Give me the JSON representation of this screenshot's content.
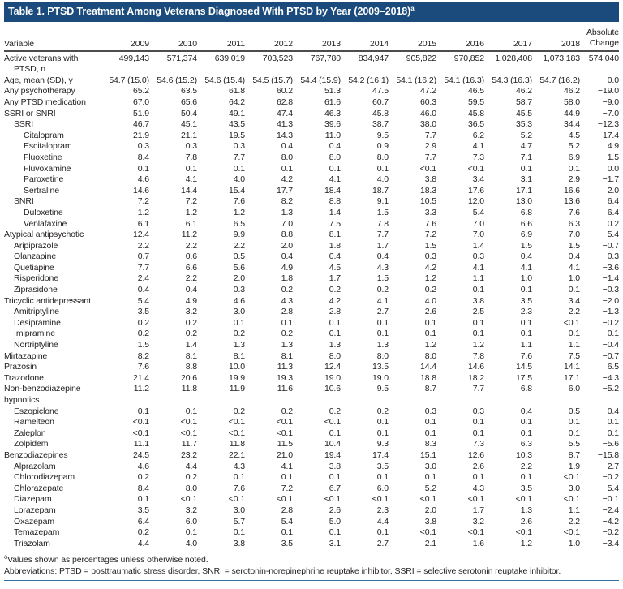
{
  "table": {
    "title": "Table 1. PTSD Treatment Among Veterans Diagnosed With PTSD by Year (2009–2018)",
    "title_marker": "a",
    "columns": [
      "Variable",
      "2009",
      "2010",
      "2011",
      "2012",
      "2013",
      "2014",
      "2015",
      "2016",
      "2017",
      "2018",
      "Absolute Change"
    ],
    "rows": [
      {
        "label": "Active veterans with PTSD, n",
        "indent": 0,
        "hang": true,
        "values": [
          "499,143",
          "571,374",
          "639,019",
          "703,523",
          "767,780",
          "834,947",
          "905,822",
          "970,852",
          "1,028,408",
          "1,073,183",
          "574,040"
        ]
      },
      {
        "label": "Age, mean (SD), y",
        "indent": 0,
        "values": [
          "54.7 (15.0)",
          "54.6 (15.2)",
          "54.6 (15.4)",
          "54.5 (15.7)",
          "54.4 (15.9)",
          "54.2 (16.1)",
          "54.1 (16.2)",
          "54.1 (16.3)",
          "54.3 (16.3)",
          "54.7 (16.2)",
          "0.0"
        ]
      },
      {
        "label": "Any psychotherapy",
        "indent": 0,
        "values": [
          "65.2",
          "63.5",
          "61.8",
          "60.2",
          "51.3",
          "47.5",
          "47.2",
          "46.5",
          "46.2",
          "46.2",
          "−19.0"
        ]
      },
      {
        "label": "Any PTSD medication",
        "indent": 0,
        "values": [
          "67.0",
          "65.6",
          "64.2",
          "62.8",
          "61.6",
          "60.7",
          "60.3",
          "59.5",
          "58.7",
          "58.0",
          "−9.0"
        ]
      },
      {
        "label": "SSRI or SNRI",
        "indent": 0,
        "values": [
          "51.9",
          "50.4",
          "49.1",
          "47.4",
          "46.3",
          "45.8",
          "46.0",
          "45.8",
          "45.5",
          "44.9",
          "−7.0"
        ]
      },
      {
        "label": "SSRI",
        "indent": 1,
        "values": [
          "46.7",
          "45.1",
          "43.5",
          "41.3",
          "39.6",
          "38.7",
          "38.0",
          "36.5",
          "35.3",
          "34.4",
          "−12.3"
        ]
      },
      {
        "label": "Citalopram",
        "indent": 2,
        "values": [
          "21.9",
          "21.1",
          "19.5",
          "14.3",
          "11.0",
          "9.5",
          "7.7",
          "6.2",
          "5.2",
          "4.5",
          "−17.4"
        ]
      },
      {
        "label": "Escitalopram",
        "indent": 2,
        "values": [
          "0.3",
          "0.3",
          "0.3",
          "0.4",
          "0.4",
          "0.9",
          "2.9",
          "4.1",
          "4.7",
          "5.2",
          "4.9"
        ]
      },
      {
        "label": "Fluoxetine",
        "indent": 2,
        "values": [
          "8.4",
          "7.8",
          "7.7",
          "8.0",
          "8.0",
          "8.0",
          "7.7",
          "7.3",
          "7.1",
          "6.9",
          "−1.5"
        ]
      },
      {
        "label": "Fluvoxamine",
        "indent": 2,
        "values": [
          "0.1",
          "0.1",
          "0.1",
          "0.1",
          "0.1",
          "0.1",
          "<0.1",
          "<0.1",
          "0.1",
          "0.1",
          "0.0"
        ]
      },
      {
        "label": "Paroxetine",
        "indent": 2,
        "values": [
          "4.6",
          "4.1",
          "4.0",
          "4.2",
          "4.1",
          "4.0",
          "3.8",
          "3.4",
          "3.1",
          "2.9",
          "−1.7"
        ]
      },
      {
        "label": "Sertraline",
        "indent": 2,
        "values": [
          "14.6",
          "14.4",
          "15.4",
          "17.7",
          "18.4",
          "18.7",
          "18.3",
          "17.6",
          "17.1",
          "16.6",
          "2.0"
        ]
      },
      {
        "label": "SNRI",
        "indent": 1,
        "values": [
          "7.2",
          "7.2",
          "7.6",
          "8.2",
          "8.8",
          "9.1",
          "10.5",
          "12.0",
          "13.0",
          "13.6",
          "6.4"
        ]
      },
      {
        "label": "Duloxetine",
        "indent": 2,
        "values": [
          "1.2",
          "1.2",
          "1.2",
          "1.3",
          "1.4",
          "1.5",
          "3.3",
          "5.4",
          "6.8",
          "7.6",
          "6.4"
        ]
      },
      {
        "label": "Venlafaxine",
        "indent": 2,
        "values": [
          "6.1",
          "6.1",
          "6.5",
          "7.0",
          "7.5",
          "7.8",
          "7.6",
          "7.0",
          "6.6",
          "6.3",
          "0.2"
        ]
      },
      {
        "label": "Atypical antipsychotic",
        "indent": 0,
        "values": [
          "12.4",
          "11.2",
          "9.9",
          "8.8",
          "8.1",
          "7.7",
          "7.2",
          "7.0",
          "6.9",
          "7.0",
          "−5.4"
        ]
      },
      {
        "label": "Aripiprazole",
        "indent": 1,
        "values": [
          "2.2",
          "2.2",
          "2.2",
          "2.0",
          "1.8",
          "1.7",
          "1.5",
          "1.4",
          "1.5",
          "1.5",
          "−0.7"
        ]
      },
      {
        "label": "Olanzapine",
        "indent": 1,
        "values": [
          "0.7",
          "0.6",
          "0.5",
          "0.4",
          "0.4",
          "0.4",
          "0.3",
          "0.3",
          "0.4",
          "0.4",
          "−0.3"
        ]
      },
      {
        "label": "Quetiapine",
        "indent": 1,
        "values": [
          "7.7",
          "6.6",
          "5.6",
          "4.9",
          "4.5",
          "4.3",
          "4.2",
          "4.1",
          "4.1",
          "4.1",
          "−3.6"
        ]
      },
      {
        "label": "Risperidone",
        "indent": 1,
        "values": [
          "2.4",
          "2.2",
          "2.0",
          "1.8",
          "1.7",
          "1.5",
          "1.2",
          "1.1",
          "1.0",
          "1.0",
          "−1.4"
        ]
      },
      {
        "label": "Ziprasidone",
        "indent": 1,
        "values": [
          "0.4",
          "0.4",
          "0.3",
          "0.2",
          "0.2",
          "0.2",
          "0.2",
          "0.1",
          "0.1",
          "0.1",
          "−0.3"
        ]
      },
      {
        "label": "Tricyclic antidepressant",
        "indent": 0,
        "values": [
          "5.4",
          "4.9",
          "4.6",
          "4.3",
          "4.2",
          "4.1",
          "4.0",
          "3.8",
          "3.5",
          "3.4",
          "−2.0"
        ]
      },
      {
        "label": "Amitriptyline",
        "indent": 1,
        "values": [
          "3.5",
          "3.2",
          "3.0",
          "2.8",
          "2.8",
          "2.7",
          "2.6",
          "2.5",
          "2.3",
          "2.2",
          "−1.3"
        ]
      },
      {
        "label": "Desipramine",
        "indent": 1,
        "values": [
          "0.2",
          "0.2",
          "0.1",
          "0.1",
          "0.1",
          "0.1",
          "0.1",
          "0.1",
          "0.1",
          "<0.1",
          "−0.2"
        ]
      },
      {
        "label": "Imipramine",
        "indent": 1,
        "values": [
          "0.2",
          "0.2",
          "0.2",
          "0.2",
          "0.1",
          "0.1",
          "0.1",
          "0.1",
          "0.1",
          "0.1",
          "−0.1"
        ]
      },
      {
        "label": "Nortriptyline",
        "indent": 1,
        "values": [
          "1.5",
          "1.4",
          "1.3",
          "1.3",
          "1.3",
          "1.3",
          "1.2",
          "1.2",
          "1.1",
          "1.1",
          "−0.4"
        ]
      },
      {
        "label": "Mirtazapine",
        "indent": 0,
        "values": [
          "8.2",
          "8.1",
          "8.1",
          "8.1",
          "8.0",
          "8.0",
          "8.0",
          "7.8",
          "7.6",
          "7.5",
          "−0.7"
        ]
      },
      {
        "label": "Prazosin",
        "indent": 0,
        "values": [
          "7.6",
          "8.8",
          "10.0",
          "11.3",
          "12.4",
          "13.5",
          "14.4",
          "14.6",
          "14.5",
          "14.1",
          "6.5"
        ]
      },
      {
        "label": "Trazodone",
        "indent": 0,
        "values": [
          "21.4",
          "20.6",
          "19.9",
          "19.3",
          "19.0",
          "19.0",
          "18.8",
          "18.2",
          "17.5",
          "17.1",
          "−4.3"
        ]
      },
      {
        "label": "Non-benzodiazepine hypnotics",
        "indent": 0,
        "values": [
          "11.2",
          "11.8",
          "11.9",
          "11.6",
          "10.6",
          "9.5",
          "8.7",
          "7.7",
          "6.8",
          "6.0",
          "−5.2"
        ]
      },
      {
        "label": "Eszopiclone",
        "indent": 1,
        "values": [
          "0.1",
          "0.1",
          "0.2",
          "0.2",
          "0.2",
          "0.2",
          "0.3",
          "0.3",
          "0.4",
          "0.5",
          "0.4"
        ]
      },
      {
        "label": "Ramelteon",
        "indent": 1,
        "values": [
          "<0.1",
          "<0.1",
          "<0.1",
          "<0.1",
          "<0.1",
          "0.1",
          "0.1",
          "0.1",
          "0.1",
          "0.1",
          "0.1"
        ]
      },
      {
        "label": "Zaleplon",
        "indent": 1,
        "values": [
          "<0.1",
          "<0.1",
          "<0.1",
          "<0.1",
          "0.1",
          "0.1",
          "0.1",
          "0.1",
          "0.1",
          "0.1",
          "0.1"
        ]
      },
      {
        "label": "Zolpidem",
        "indent": 1,
        "values": [
          "11.1",
          "11.7",
          "11.8",
          "11.5",
          "10.4",
          "9.3",
          "8.3",
          "7.3",
          "6.3",
          "5.5",
          "−5.6"
        ]
      },
      {
        "label": "Benzodiazepines",
        "indent": 0,
        "values": [
          "24.5",
          "23.2",
          "22.1",
          "21.0",
          "19.4",
          "17.4",
          "15.1",
          "12.6",
          "10.3",
          "8.7",
          "−15.8"
        ]
      },
      {
        "label": "Alprazolam",
        "indent": 1,
        "values": [
          "4.6",
          "4.4",
          "4.3",
          "4.1",
          "3.8",
          "3.5",
          "3.0",
          "2.6",
          "2.2",
          "1.9",
          "−2.7"
        ]
      },
      {
        "label": "Chlorodiazepam",
        "indent": 1,
        "values": [
          "0.2",
          "0.2",
          "0.1",
          "0.1",
          "0.1",
          "0.1",
          "0.1",
          "0.1",
          "0.1",
          "<0.1",
          "−0.2"
        ]
      },
      {
        "label": "Chlorazepate",
        "indent": 1,
        "values": [
          "8.4",
          "8.0",
          "7.6",
          "7.2",
          "6.7",
          "6.0",
          "5.2",
          "4.3",
          "3.5",
          "3.0",
          "−5.4"
        ]
      },
      {
        "label": "Diazepam",
        "indent": 1,
        "values": [
          "0.1",
          "<0.1",
          "<0.1",
          "<0.1",
          "<0.1",
          "<0.1",
          "<0.1",
          "<0.1",
          "<0.1",
          "<0.1",
          "−0.1"
        ]
      },
      {
        "label": "Lorazepam",
        "indent": 1,
        "values": [
          "3.5",
          "3.2",
          "3.0",
          "2.8",
          "2.6",
          "2.3",
          "2.0",
          "1.7",
          "1.3",
          "1.1",
          "−2.4"
        ]
      },
      {
        "label": "Oxazepam",
        "indent": 1,
        "values": [
          "6.4",
          "6.0",
          "5.7",
          "5.4",
          "5.0",
          "4.4",
          "3.8",
          "3.2",
          "2.6",
          "2.2",
          "−4.2"
        ]
      },
      {
        "label": "Temazepam",
        "indent": 1,
        "values": [
          "0.2",
          "0.1",
          "0.1",
          "0.1",
          "0.1",
          "0.1",
          "<0.1",
          "<0.1",
          "<0.1",
          "<0.1",
          "−0.2"
        ]
      },
      {
        "label": "Triazolam",
        "indent": 1,
        "values": [
          "4.4",
          "4.0",
          "3.8",
          "3.5",
          "3.1",
          "2.7",
          "2.1",
          "1.6",
          "1.2",
          "1.0",
          "−3.4"
        ]
      }
    ],
    "footnotes": [
      {
        "marker": "a",
        "text": "Values shown as percentages unless otherwise noted."
      },
      {
        "marker": "",
        "text": "Abbreviations: PTSD = posttraumatic stress disorder, SNRI = serotonin-norepinephrine reuptake inhibitor, SSRI = selective serotonin reuptake inhibitor."
      }
    ],
    "colors": {
      "title_bar": "#1a4b7c",
      "header_rule": "#4c4d4f",
      "footnote_rule": "#2f6fa5"
    }
  }
}
